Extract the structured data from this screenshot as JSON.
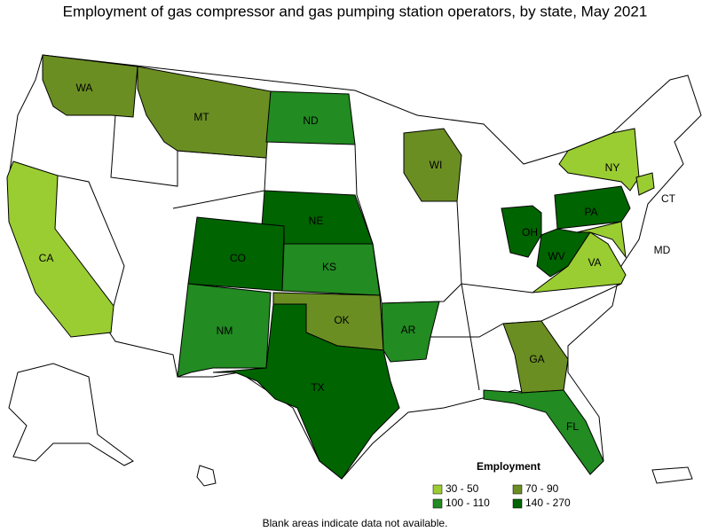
{
  "title": "Employment of gas compressor and gas pumping station operators, by state, May 2021",
  "legend": {
    "title": "Employment",
    "items": [
      {
        "label": "30 - 50",
        "color": "#9acd32"
      },
      {
        "label": "70 - 90",
        "color": "#6b8e23"
      },
      {
        "label": "100 - 110",
        "color": "#228b22"
      },
      {
        "label": "140 - 270",
        "color": "#006400"
      }
    ]
  },
  "states": [
    {
      "label": "WA",
      "range": 1
    },
    {
      "label": "MT",
      "range": 1
    },
    {
      "label": "ND",
      "range": 2
    },
    {
      "label": "CA",
      "range": 0
    },
    {
      "label": "NY",
      "range": 0
    },
    {
      "label": "CT",
      "range": 0
    },
    {
      "label": "WI",
      "range": 1
    },
    {
      "label": "NE",
      "range": 3
    },
    {
      "label": "CO",
      "range": 3
    },
    {
      "label": "KS",
      "range": 2
    },
    {
      "label": "OK",
      "range": 1
    },
    {
      "label": "NM",
      "range": 2
    },
    {
      "label": "TX",
      "range": 3
    },
    {
      "label": "AR",
      "range": 2
    },
    {
      "label": "GA",
      "range": 1
    },
    {
      "label": "FL",
      "range": 2
    },
    {
      "label": "OH",
      "range": 3
    },
    {
      "label": "PA",
      "range": 3
    },
    {
      "label": "WV",
      "range": 3
    },
    {
      "label": "VA",
      "range": 0
    },
    {
      "label": "MD",
      "range": 0
    }
  ],
  "footnote": "Blank areas indicate data not available."
}
